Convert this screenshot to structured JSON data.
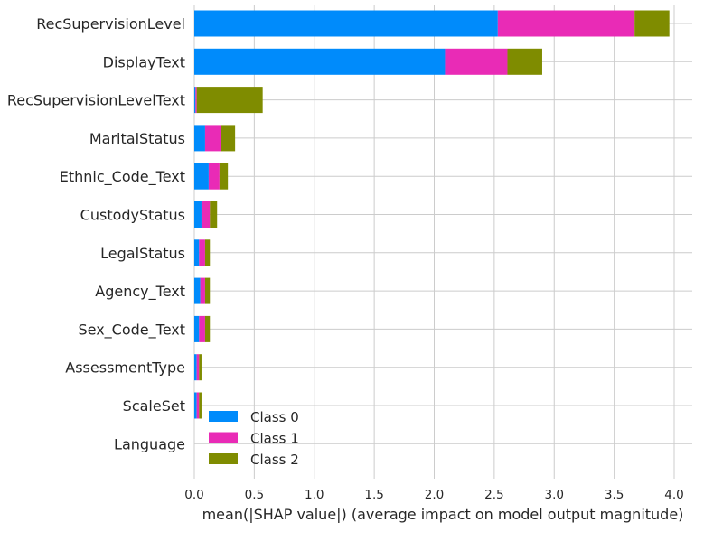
{
  "chart_data": {
    "type": "bar",
    "orientation": "horizontal",
    "stacked": true,
    "categories": [
      "RecSupervisionLevel",
      "DisplayText",
      "RecSupervisionLevelText",
      "MaritalStatus",
      "Ethnic_Code_Text",
      "CustodyStatus",
      "LegalStatus",
      "Agency_Text",
      "Sex_Code_Text",
      "AssessmentType",
      "ScaleSet",
      "Language"
    ],
    "series": [
      {
        "name": "Class 0",
        "color": "#008bfb",
        "values": [
          2.53,
          2.09,
          0.01,
          0.09,
          0.12,
          0.06,
          0.04,
          0.05,
          0.04,
          0.02,
          0.02,
          0.0
        ]
      },
      {
        "name": "Class 1",
        "color": "#e92bb6",
        "values": [
          1.14,
          0.52,
          0.01,
          0.13,
          0.09,
          0.07,
          0.05,
          0.04,
          0.05,
          0.02,
          0.02,
          0.0
        ]
      },
      {
        "name": "Class 2",
        "color": "#7f8c00",
        "values": [
          0.29,
          0.29,
          0.55,
          0.12,
          0.07,
          0.06,
          0.04,
          0.04,
          0.04,
          0.02,
          0.02,
          0.0
        ]
      }
    ],
    "xlabel": "mean(|SHAP value|) (average impact on model output magnitude)",
    "xlim": [
      0.0,
      4.1
    ],
    "xticks": [
      "0.0",
      "0.5",
      "1.0",
      "1.5",
      "2.0",
      "2.5",
      "3.0",
      "3.5",
      "4.0"
    ],
    "xtick_values": [
      0.0,
      0.5,
      1.0,
      1.5,
      2.0,
      2.5,
      3.0,
      3.5,
      4.0
    ],
    "grid": true,
    "legend_position": "lower-left"
  }
}
